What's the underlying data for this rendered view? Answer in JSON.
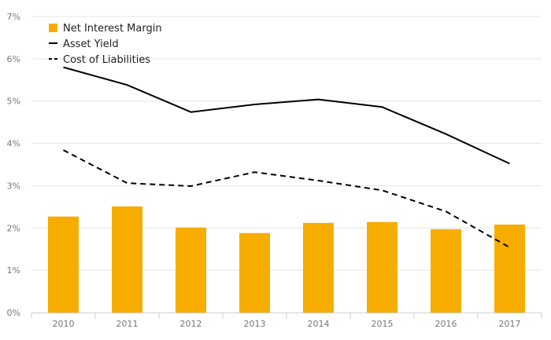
{
  "chart_data": {
    "type": "bar",
    "categories": [
      "2010",
      "2011",
      "2012",
      "2013",
      "2014",
      "2015",
      "2016",
      "2017"
    ],
    "y_tick_labels": [
      "0%",
      "1%",
      "2%",
      "3%",
      "4%",
      "5%",
      "6%",
      "7%"
    ],
    "ylim": [
      0,
      7
    ],
    "unit": "%",
    "grid": true,
    "legend_position": "top-left",
    "series": [
      {
        "name": "Net Interest Margin",
        "type": "bar",
        "color": "#f7ad00",
        "values": [
          2.27,
          2.51,
          2.01,
          1.88,
          2.12,
          2.14,
          1.97,
          2.08
        ]
      },
      {
        "name": "Asset Yield",
        "type": "line",
        "style": "solid",
        "color": "#000000",
        "values": [
          5.8,
          5.38,
          4.74,
          4.92,
          5.04,
          4.86,
          4.22,
          3.52
        ]
      },
      {
        "name": "Cost of Liabilities",
        "type": "line",
        "style": "dashed",
        "color": "#000000",
        "values": [
          3.84,
          3.06,
          2.99,
          3.32,
          3.12,
          2.89,
          2.39,
          1.54
        ]
      }
    ]
  }
}
